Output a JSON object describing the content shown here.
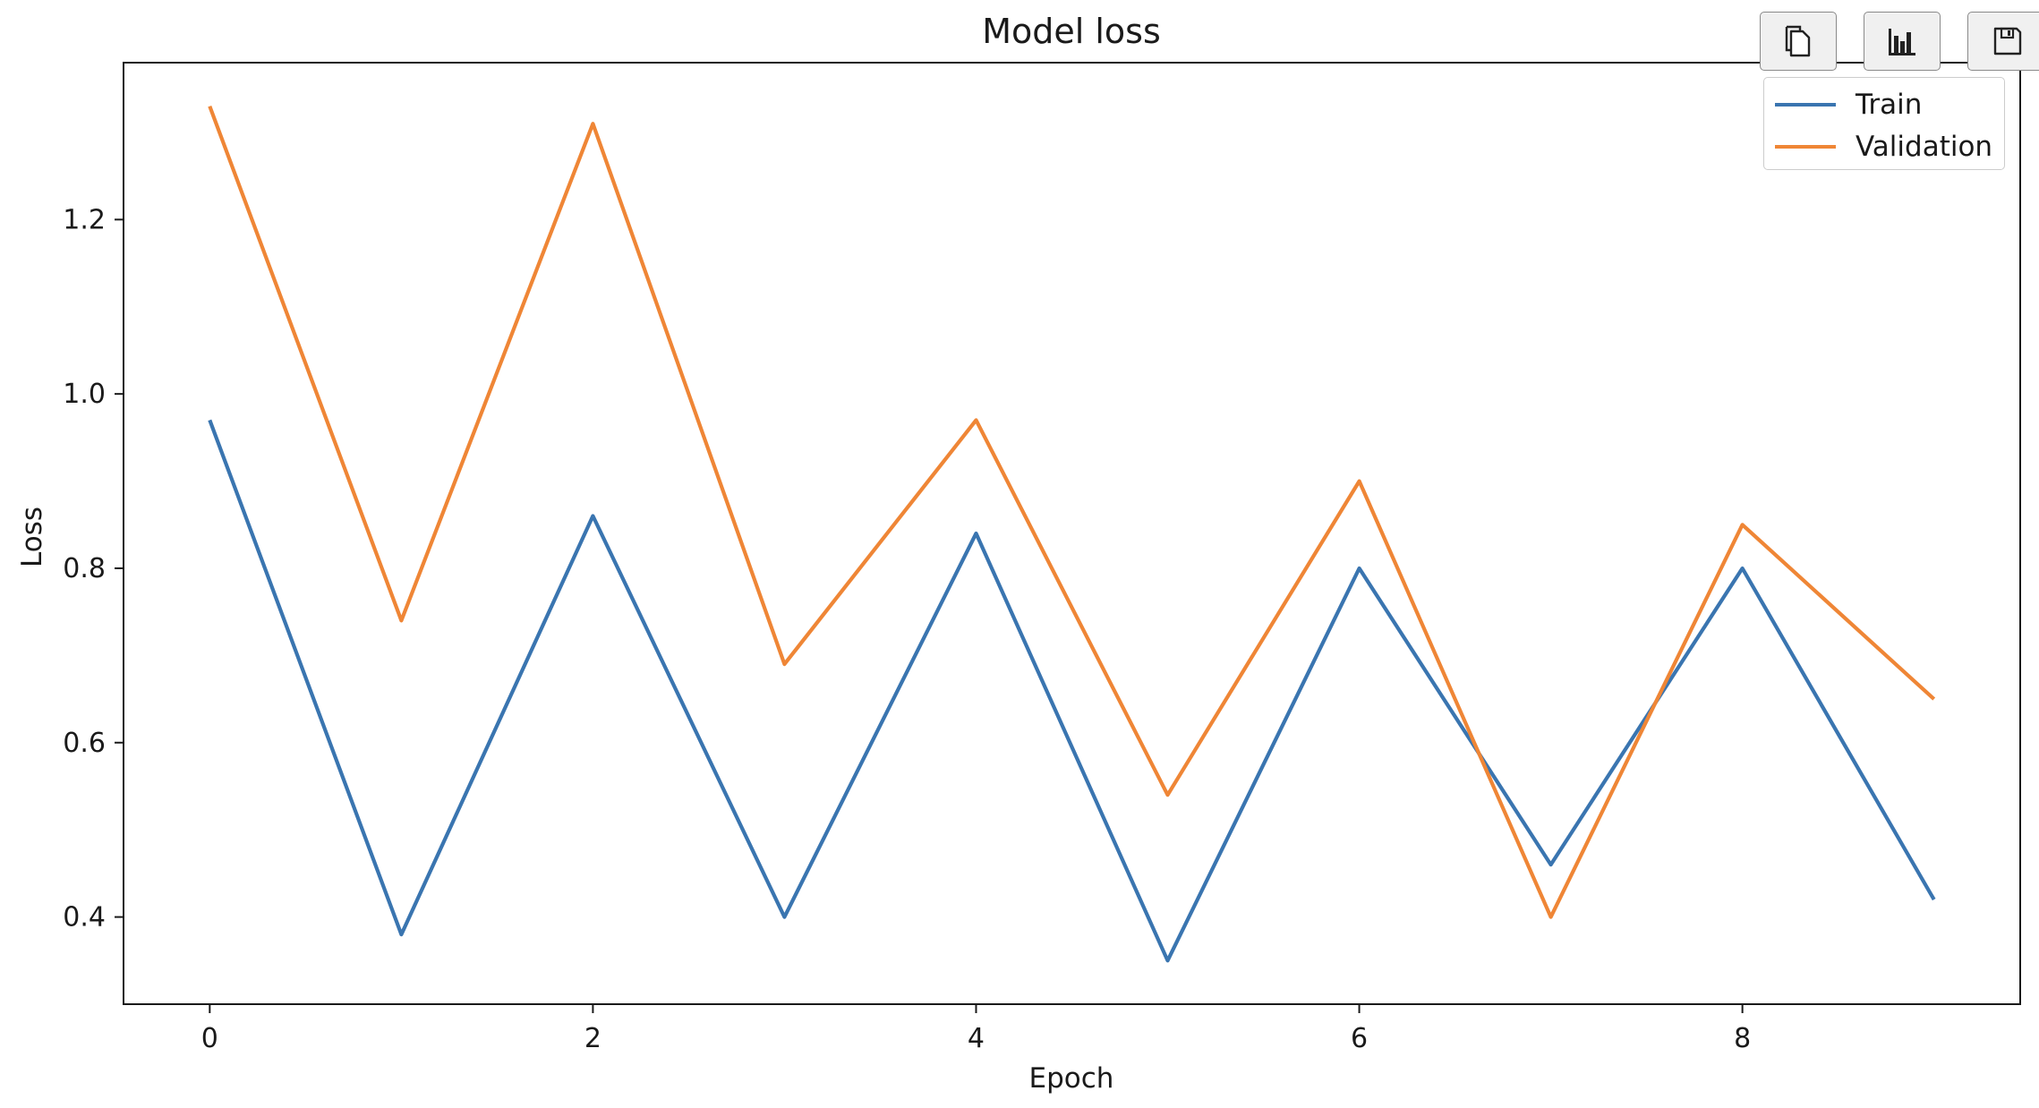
{
  "toolbar": {
    "copy_icon": "copy-icon",
    "chart_icon": "bar-chart-icon",
    "save_icon": "save-icon"
  },
  "chart_data": {
    "type": "line",
    "title": "Model loss",
    "xlabel": "Epoch",
    "ylabel": "Loss",
    "xlim": [
      -0.45,
      9.45
    ],
    "ylim": [
      0.3,
      1.38
    ],
    "x": [
      0,
      1,
      2,
      3,
      4,
      5,
      6,
      7,
      8,
      9
    ],
    "xticks": [
      0,
      2,
      4,
      6,
      8
    ],
    "yticks": [
      0.4,
      0.6,
      0.8,
      1.0,
      1.2
    ],
    "xtick_labels": [
      "0",
      "2",
      "4",
      "6",
      "8"
    ],
    "ytick_labels": [
      "0.4",
      "0.6",
      "0.8",
      "1.0",
      "1.2"
    ],
    "grid": false,
    "legend_position": "top-right",
    "series": [
      {
        "name": "Train",
        "color": "#3a75b0",
        "values": [
          0.97,
          0.38,
          0.86,
          0.4,
          0.84,
          0.35,
          0.8,
          0.46,
          0.8,
          0.42
        ]
      },
      {
        "name": "Validation",
        "color": "#ef8636",
        "values": [
          1.33,
          0.74,
          1.31,
          0.69,
          0.97,
          0.54,
          0.9,
          0.4,
          0.85,
          0.65
        ]
      }
    ]
  }
}
